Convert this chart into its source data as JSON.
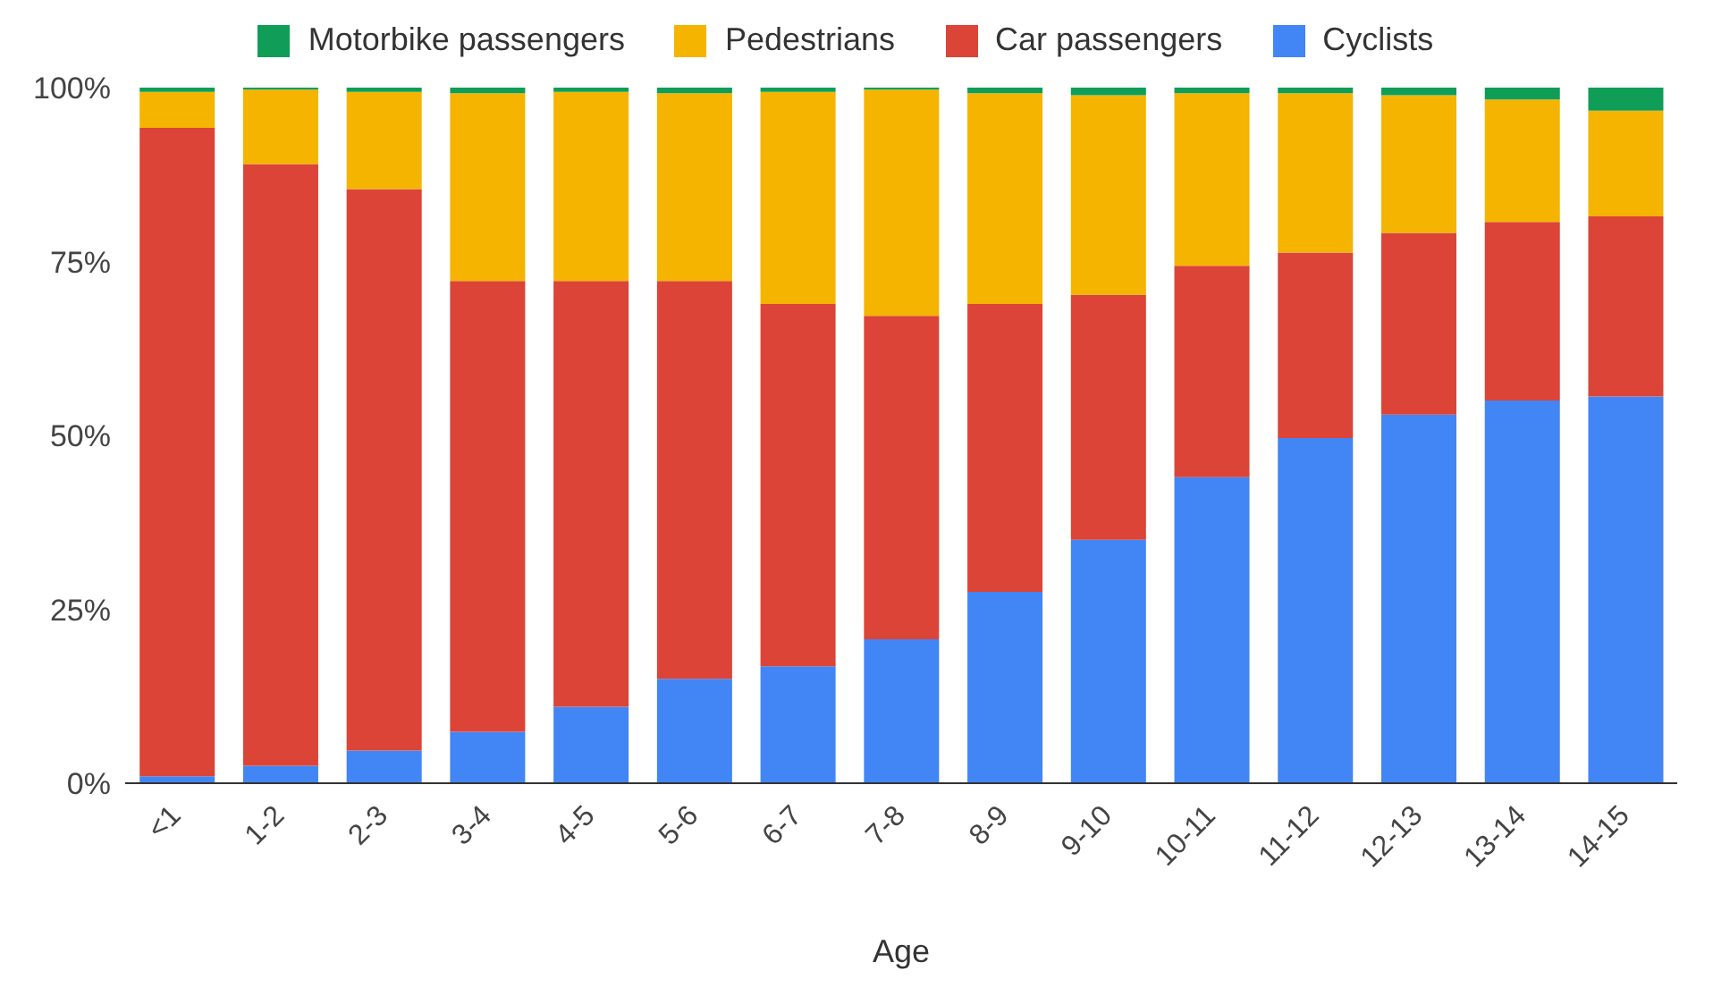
{
  "chart_data": {
    "type": "bar",
    "stacked": true,
    "xlabel": "Age",
    "categories": [
      "<1",
      "1-2",
      "2-3",
      "3-4",
      "4-5",
      "5-6",
      "6-7",
      "7-8",
      "8-9",
      "9-10",
      "10-11",
      "11-12",
      "12-13",
      "13-14",
      "14-15"
    ],
    "series": [
      {
        "name": "Cyclists",
        "color": "#4285f4",
        "values": [
          1,
          2.5,
          4.7,
          7.4,
          11,
          15,
          16.8,
          20.7,
          27.5,
          35,
          44,
          49.6,
          53,
          55,
          55.6
        ]
      },
      {
        "name": "Car passengers",
        "color": "#db4437",
        "values": [
          93.2,
          86.5,
          80.7,
          64.8,
          61.2,
          57.2,
          52.1,
          46.5,
          41.4,
          35.2,
          30.4,
          26.7,
          26.1,
          25.7,
          25.9
        ]
      },
      {
        "name": "Pedestrians",
        "color": "#f4b400",
        "values": [
          5.2,
          10.7,
          14,
          27,
          27.2,
          27,
          30.5,
          32.5,
          30.3,
          28.7,
          24.8,
          22.9,
          19.8,
          17.6,
          15.2
        ]
      },
      {
        "name": "Motorbike passengers",
        "color": "#0f9d58",
        "values": [
          0.6,
          0.3,
          0.6,
          0.8,
          0.6,
          0.8,
          0.6,
          0.3,
          0.8,
          1.1,
          0.8,
          0.8,
          1.1,
          1.7,
          3.3
        ]
      }
    ],
    "ylim": [
      0,
      100
    ],
    "yticks": [
      {
        "value": 0,
        "label": "0%"
      },
      {
        "value": 25,
        "label": "25%"
      },
      {
        "value": 50,
        "label": "50%"
      },
      {
        "value": 75,
        "label": "75%"
      },
      {
        "value": 100,
        "label": "100%"
      }
    ],
    "grid": false,
    "legend": "top"
  }
}
